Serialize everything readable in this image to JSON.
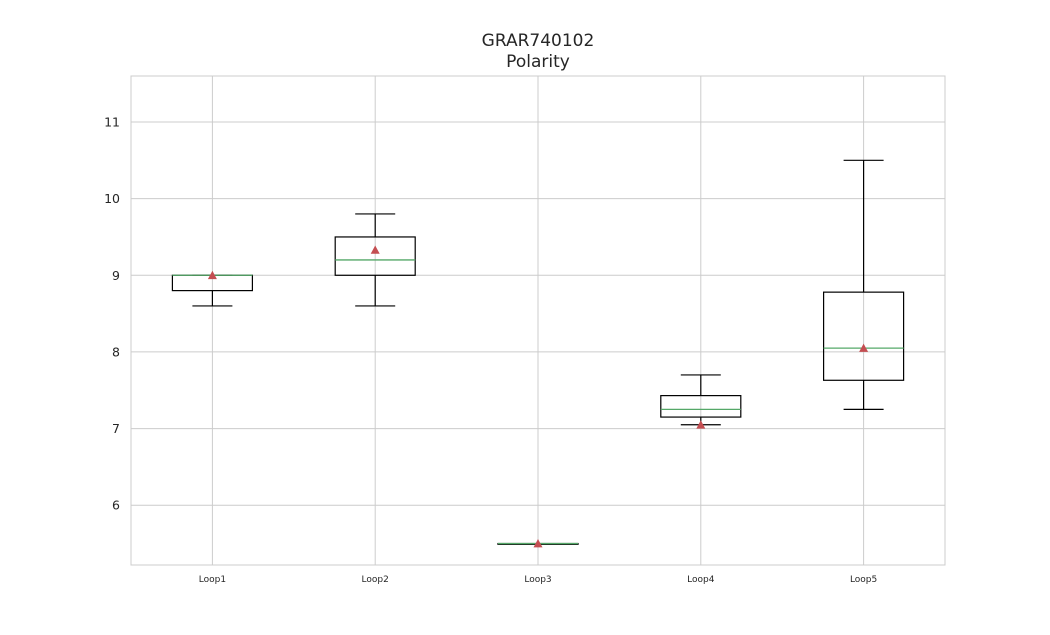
{
  "chart_data": {
    "type": "box",
    "title": "GRAR740102",
    "subtitle": "Polarity",
    "xlabel": "",
    "ylabel": "",
    "ylim": [
      5.22,
      11.6
    ],
    "yticks": [
      6,
      7,
      8,
      9,
      10,
      11
    ],
    "grid": true,
    "categories": [
      "Loop1",
      "Loop2",
      "Loop3",
      "Loop4",
      "Loop5"
    ],
    "boxes": [
      {
        "whisker_low": 8.6,
        "q1": 8.8,
        "median": 9.0,
        "q3": 9.0,
        "whisker_high": 9.0,
        "mean": 9.0
      },
      {
        "whisker_low": 8.6,
        "q1": 9.0,
        "median": 9.2,
        "q3": 9.5,
        "whisker_high": 9.8,
        "mean": 9.33
      },
      {
        "whisker_low": 5.5,
        "q1": 5.5,
        "median": 5.5,
        "q3": 5.5,
        "whisker_high": 5.5,
        "mean": 5.5
      },
      {
        "whisker_low": 7.05,
        "q1": 7.15,
        "median": 7.25,
        "q3": 7.43,
        "whisker_high": 7.7,
        "mean": 7.05
      },
      {
        "whisker_low": 7.25,
        "q1": 7.63,
        "median": 8.05,
        "q3": 8.78,
        "whisker_high": 10.5,
        "mean": 8.05
      }
    ],
    "colors": {
      "box": "#000000",
      "median": "#55a868",
      "mean": "#c44e52",
      "grid": "#cccccc",
      "frame": "#cccccc"
    }
  }
}
